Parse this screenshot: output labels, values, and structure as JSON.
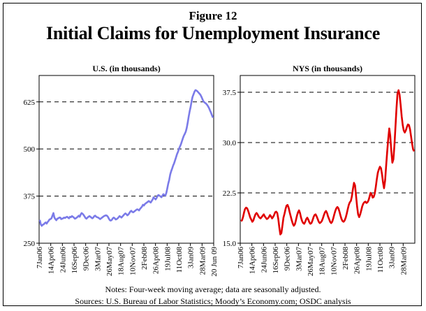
{
  "figure_label": "Figure 12",
  "title": "Initial Claims for Unemployment Insurance",
  "notes": "Notes: Four-week moving average; data are seasonally adjusted.",
  "sources": "Sources:  U.S. Bureau of Labor Statistics; Moody’s Economy.com; OSDC analysis",
  "colors": {
    "us_line": "#7b7be8",
    "nys_line": "#e00000"
  },
  "chart_data": [
    {
      "type": "line",
      "title": "U.S. (in thousands)",
      "x_ticks": [
        "7Jan06",
        "14Apr06",
        "24Jun06",
        "16Sep06",
        "9Dec06",
        "3Mar07",
        "26May07",
        "18Aug07",
        "10Nov07",
        "2Feb08",
        "26Apr08",
        "19Jul08",
        "11Oct08",
        "3Jan09",
        "28Mar09",
        "20 Jun 09"
      ],
      "y_ticks": [
        "250",
        "375",
        "500",
        "625"
      ],
      "ylim": [
        250,
        695
      ],
      "grid": "dashed horizontal",
      "series": [
        {
          "values": [
            312,
            300,
            296,
            299,
            300,
            303,
            305,
            302,
            306,
            309,
            313,
            314,
            316,
            323,
            330,
            318,
            314,
            311,
            315,
            316,
            318,
            318,
            314,
            315,
            316,
            318,
            317,
            319,
            320,
            318,
            316,
            320,
            319,
            322,
            320,
            318,
            315,
            316,
            318,
            320,
            323,
            320,
            326,
            330,
            328,
            325,
            321,
            317,
            315,
            318,
            320,
            322,
            320,
            318,
            316,
            318,
            322,
            323,
            320,
            319,
            318,
            316,
            314,
            316,
            318,
            320,
            322,
            323,
            324,
            323,
            320,
            315,
            311,
            310,
            312,
            316,
            318,
            316,
            313,
            314,
            316,
            319,
            322,
            320,
            318,
            321,
            324,
            327,
            329,
            327,
            324,
            326,
            330,
            334,
            336,
            333,
            332,
            334,
            336,
            338,
            340,
            339,
            337,
            341,
            344,
            347,
            352,
            350,
            354,
            356,
            358,
            360,
            362,
            360,
            358,
            362,
            366,
            372,
            369,
            366,
            370,
            376,
            378,
            376,
            374,
            372,
            376,
            380,
            378,
            376,
            383,
            395,
            408,
            418,
            432,
            441,
            448,
            456,
            462,
            470,
            478,
            486,
            492,
            500,
            506,
            512,
            520,
            528,
            535,
            540,
            546,
            556,
            570,
            586,
            600,
            612,
            626,
            638,
            645,
            652,
            656,
            655,
            653,
            650,
            647,
            644,
            639,
            633,
            627,
            624,
            622,
            620,
            617,
            613,
            608,
            602,
            596,
            589,
            583
          ]
        }
      ]
    },
    {
      "type": "line",
      "title": "NYS (in thousands)",
      "x_ticks": [
        "7Jan06",
        "14Apr06",
        "24Jun06",
        "16Sep06",
        "9Dec06",
        "3Mar07",
        "26May07",
        "18Aug07",
        "10Nov07",
        "2Feb08",
        "26Apr08",
        "19Jul08",
        "11Oct08",
        "3Jan09",
        "28Mar09"
      ],
      "y_ticks": [
        "15.0",
        "22.5",
        "30.0",
        "37.5"
      ],
      "ylim": [
        15.0,
        40.0
      ],
      "grid": "dashed horizontal",
      "series": [
        {
          "values": [
            18.3,
            18.4,
            18.9,
            19.6,
            20.1,
            20.3,
            20.2,
            19.8,
            19.3,
            18.8,
            18.5,
            18.2,
            18.4,
            18.9,
            19.3,
            19.5,
            19.3,
            19.0,
            18.8,
            18.7,
            18.9,
            19.1,
            19.3,
            19.0,
            18.8,
            18.6,
            18.7,
            18.9,
            19.2,
            19.0,
            18.7,
            18.9,
            19.2,
            19.6,
            19.7,
            19.5,
            18.6,
            17.4,
            16.3,
            16.5,
            17.6,
            18.8,
            19.4,
            20.1,
            20.6,
            20.7,
            20.3,
            19.6,
            19.0,
            18.4,
            17.9,
            17.6,
            17.8,
            18.4,
            19.1,
            19.6,
            19.9,
            19.5,
            18.8,
            18.3,
            18.0,
            17.9,
            18.2,
            18.6,
            18.8,
            18.5,
            18.1,
            17.9,
            18.0,
            18.4,
            18.9,
            19.2,
            19.3,
            19.0,
            18.6,
            18.2,
            18.0,
            18.1,
            18.3,
            18.7,
            19.2,
            19.6,
            19.8,
            19.5,
            19.0,
            18.6,
            18.2,
            18.0,
            18.2,
            18.7,
            19.3,
            19.8,
            20.2,
            20.4,
            20.2,
            19.7,
            19.1,
            18.6,
            18.3,
            18.2,
            18.4,
            18.8,
            19.4,
            20.1,
            20.7,
            21.1,
            21.3,
            22.0,
            23.1,
            24.0,
            23.6,
            22.1,
            20.5,
            19.3,
            18.9,
            19.3,
            19.9,
            20.5,
            20.9,
            21.1,
            21.2,
            21.0,
            21.1,
            21.4,
            21.9,
            22.5,
            22.3,
            21.8,
            21.9,
            22.4,
            23.4,
            24.5,
            25.5,
            26.0,
            26.4,
            26.2,
            25.3,
            24.1,
            23.2,
            24.3,
            26.5,
            28.6,
            30.5,
            32.1,
            31.0,
            28.8,
            27.0,
            27.5,
            29.6,
            32.4,
            35.2,
            37.3,
            37.8,
            37.1,
            35.6,
            33.9,
            32.6,
            31.8,
            31.5,
            31.8,
            32.3,
            32.7,
            32.6,
            32.0,
            31.0,
            29.9,
            29.0,
            28.7
          ]
        }
      ]
    }
  ]
}
